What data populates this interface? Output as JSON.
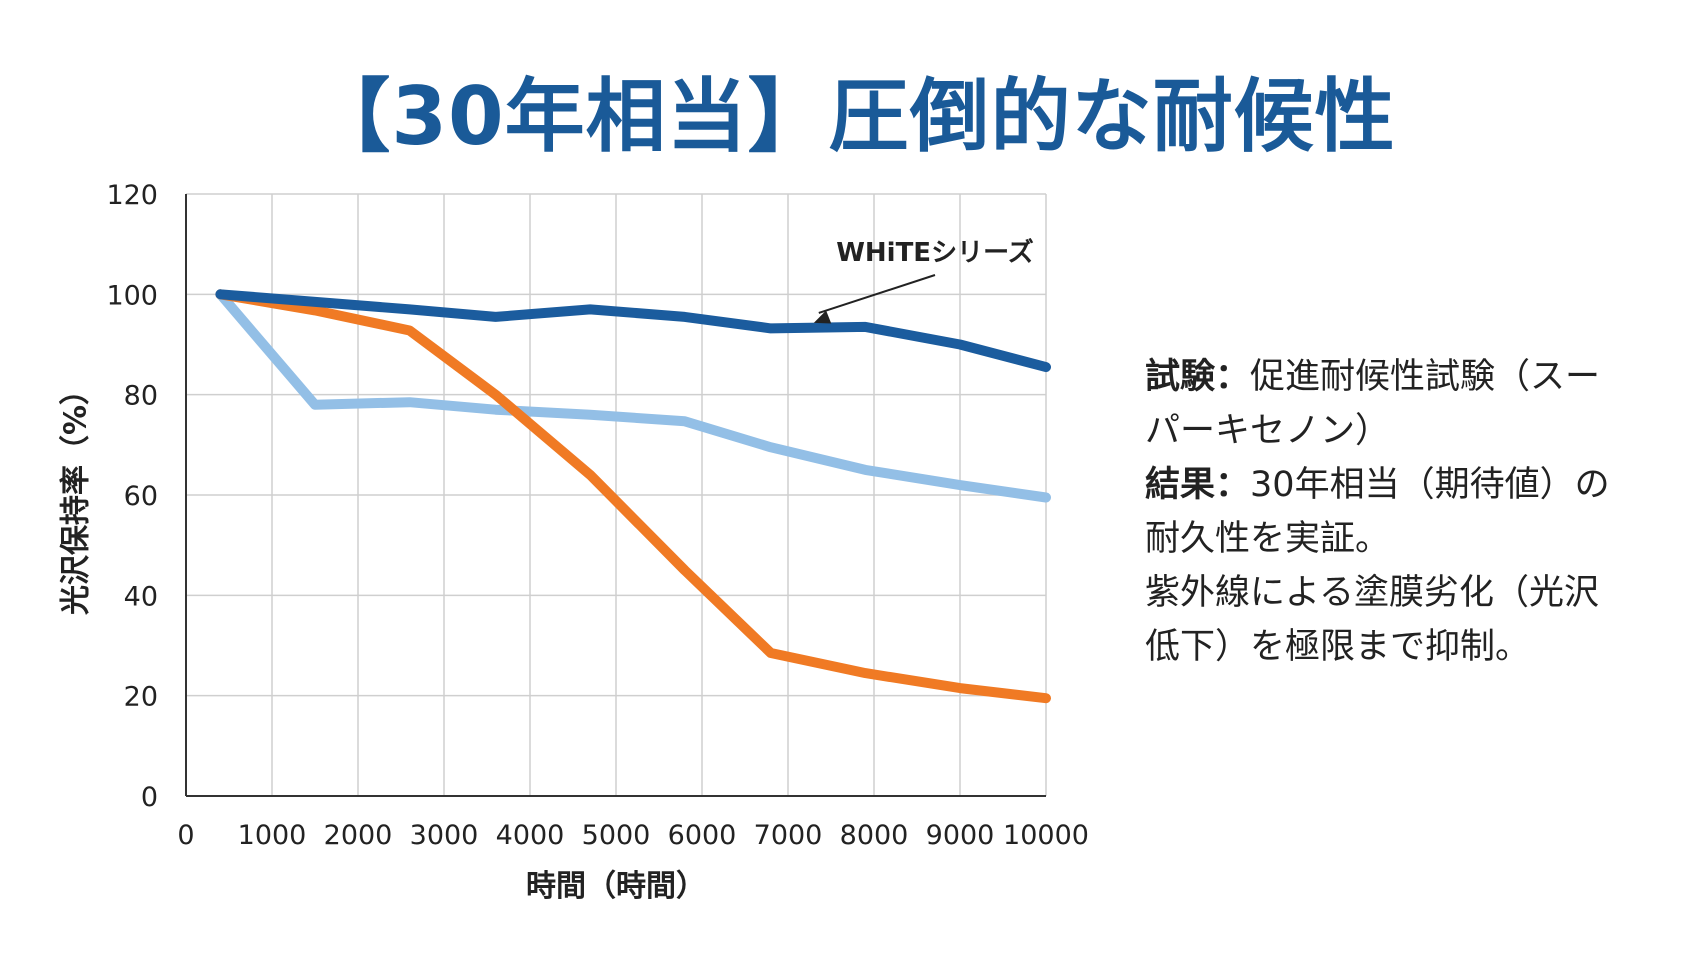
{
  "title": "【30年相当】圧倒的な耐候性",
  "chart_data": {
    "type": "line",
    "xlabel": "時間（時間）",
    "ylabel": "光沢保持率（%）",
    "xlim": [
      0,
      10000
    ],
    "ylim": [
      0,
      120
    ],
    "x_ticks": [
      0,
      1000,
      2000,
      3000,
      4000,
      5000,
      6000,
      7000,
      8000,
      9000,
      10000
    ],
    "y_ticks": [
      0,
      20,
      40,
      60,
      80,
      100,
      120
    ],
    "grid": true,
    "annotation": "WHiTEシリーズ",
    "series": [
      {
        "name": "WHiTEシリーズ",
        "color": "#1b5c9e",
        "points": [
          [
            400,
            100
          ],
          [
            2600,
            97
          ],
          [
            3600,
            95.5
          ],
          [
            4700,
            97
          ],
          [
            5800,
            95.5
          ],
          [
            6800,
            93.2
          ],
          [
            7900,
            93.5
          ],
          [
            9000,
            90
          ],
          [
            10000,
            85.5
          ]
        ]
      },
      {
        "color": "#93bfe6",
        "points": [
          [
            400,
            100
          ],
          [
            1500,
            78
          ],
          [
            2600,
            78.5
          ],
          [
            3600,
            77
          ],
          [
            4700,
            76
          ],
          [
            5800,
            74.7
          ],
          [
            6800,
            69.5
          ],
          [
            7900,
            65
          ],
          [
            9000,
            62
          ],
          [
            10000,
            59.5
          ]
        ]
      },
      {
        "color": "#f07a24",
        "points": [
          [
            400,
            100
          ],
          [
            1500,
            96.8
          ],
          [
            2600,
            92.8
          ],
          [
            3600,
            80
          ],
          [
            4700,
            64
          ],
          [
            5800,
            45
          ],
          [
            6800,
            28.5
          ],
          [
            7900,
            24.5
          ],
          [
            9000,
            21.5
          ],
          [
            10000,
            19.5
          ]
        ]
      }
    ]
  },
  "side_note": {
    "test_label": "試験",
    "sep": "：",
    "test_text_1": "促進耐候性試験（スー",
    "test_text_2": "パーキセノン）",
    "result_label": "結果",
    "result_text_1": "30年相当（期待値）の",
    "result_text_2": "耐久性を実証。",
    "body_1": "紫外線による塗膜劣化（光沢",
    "body_2": "低下）を極限まで抑制。"
  }
}
